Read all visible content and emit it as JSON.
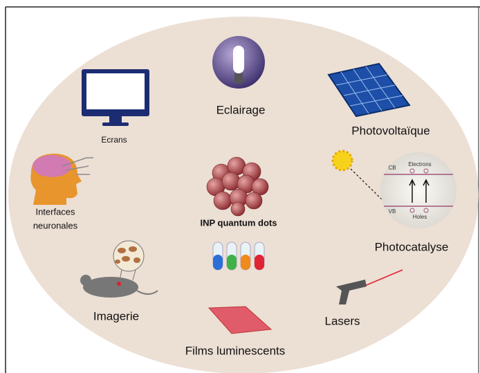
{
  "center": {
    "label": "INP quantum dots"
  },
  "applications": [
    {
      "lines": [
        "Eclairage"
      ]
    },
    {
      "lines": [
        "Ecrans"
      ]
    },
    {
      "lines": [
        "Photovoltaïque"
      ]
    },
    {
      "lines": [
        "Interfaces",
        "neuronales"
      ]
    },
    {
      "lines": [
        "Photocatalyse"
      ]
    },
    {
      "lines": [
        "Imagerie"
      ]
    },
    {
      "lines": [
        "Lasers"
      ]
    },
    {
      "lines": [
        "Films luminescents"
      ]
    }
  ],
  "photocatalysis_inset": {
    "conduction_band": "CB",
    "electrons": "Electrons",
    "valence_band": "VB",
    "holes": "Holes"
  }
}
